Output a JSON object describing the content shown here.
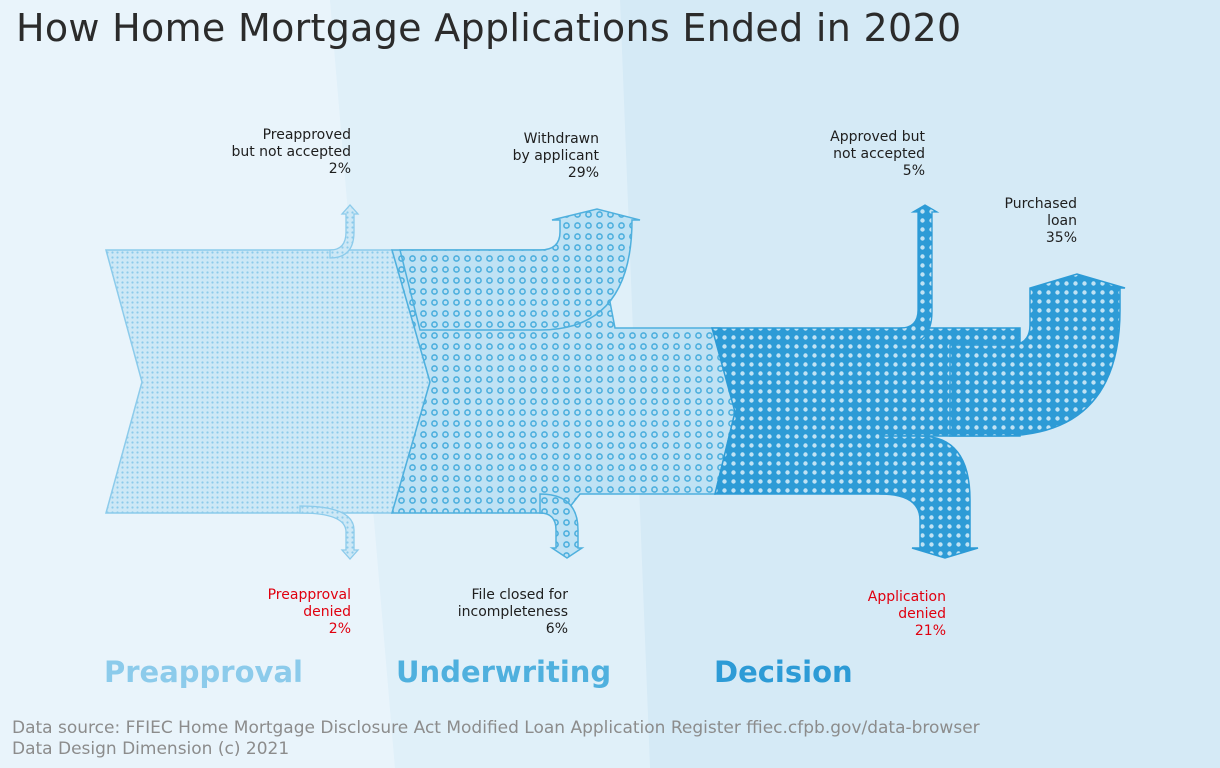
{
  "title": "How Home Mortgage Applications Ended in 2020",
  "stages": [
    "Preapproval",
    "Underwriting",
    "Decision"
  ],
  "outcomes": {
    "preapproved_not_accepted": {
      "lines": [
        "Preapproved",
        "but not accepted"
      ],
      "value": "2%"
    },
    "preapproval_denied": {
      "lines": [
        "Preapproval",
        "denied"
      ],
      "value": "2%"
    },
    "withdrawn": {
      "lines": [
        "Withdrawn",
        "by applicant"
      ],
      "value": "29%"
    },
    "file_closed": {
      "lines": [
        "File closed for",
        "incompleteness"
      ],
      "value": "6%"
    },
    "approved_not_accepted": {
      "lines": [
        "Approved but",
        "not accepted"
      ],
      "value": "5%"
    },
    "purchased_loan": {
      "lines": [
        "Purchased",
        "loan"
      ],
      "value": "35%"
    },
    "application_denied": {
      "lines": [
        "Application",
        "denied"
      ],
      "value": "21%"
    }
  },
  "footer": {
    "source": "Data source: FFIEC Home Mortgage Disclosure Act Modified Loan Application Register ffiec.cfpb.gov/data-browser",
    "credit": "Data Design Dimension (c) 2021"
  },
  "colors": {
    "preapproval": "#8ccbeb",
    "underwriting": "#4fb0de",
    "decision": "#2d9bd6",
    "denied_label": "#e0000f"
  }
}
